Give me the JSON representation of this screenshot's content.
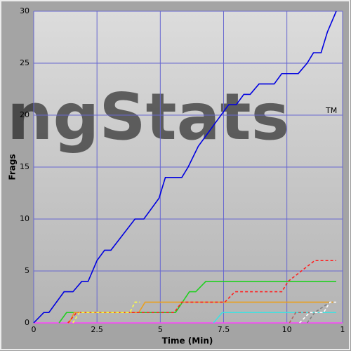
{
  "chart_data": {
    "type": "line",
    "watermark": "ngStats",
    "watermark_mark": "TM",
    "x_label": "Time (Min)",
    "y_label": "Frags",
    "xlim": [
      0,
      12.2
    ],
    "ylim": [
      0,
      30
    ],
    "xticks": [
      0,
      2.5,
      5,
      7.5,
      10,
      {
        "value": 12.2,
        "label": "1"
      }
    ],
    "yticks": [
      0,
      5,
      10,
      15,
      20,
      25,
      30
    ],
    "grid": true,
    "series": [
      {
        "color": "#ff40ff",
        "dashed": false,
        "x": [
          0,
          12.2
        ],
        "values": [
          0,
          0
        ]
      },
      {
        "color": "#0000e0",
        "dashed": false,
        "x": [
          0,
          0.4,
          0.6,
          0.9,
          1.2,
          1.55,
          1.9,
          2.15,
          2.5,
          2.8,
          3.05,
          4.0,
          4.35,
          4.95,
          5.2,
          5.85,
          6.1,
          6.5,
          7.1,
          7.7,
          8.0,
          8.3,
          8.55,
          8.9,
          9.5,
          9.8,
          10.45,
          10.8,
          11.05,
          11.35,
          11.6,
          11.95
        ],
        "values": [
          0,
          1,
          1,
          2,
          3,
          3,
          4,
          4,
          6,
          7,
          7,
          10,
          10,
          12,
          14,
          14,
          15,
          17,
          19,
          21,
          21,
          22,
          22,
          23,
          23,
          24,
          24,
          25,
          26,
          26,
          28,
          30
        ]
      },
      {
        "color": "#20d020",
        "dashed": false,
        "x": [
          1.0,
          1.3,
          5.6,
          6.15,
          6.4,
          6.8,
          11.95
        ],
        "values": [
          0,
          1,
          1,
          3,
          3,
          4,
          4
        ]
      },
      {
        "color": "#e8a020",
        "dashed": false,
        "x": [
          1.4,
          1.6,
          4.15,
          4.4,
          11.95
        ],
        "values": [
          0,
          1,
          1,
          2,
          2
        ]
      },
      {
        "color": "#ff2020",
        "dashed": true,
        "x": [
          1.35,
          1.7,
          5.55,
          5.85,
          7.55,
          7.95,
          9.8,
          10.05,
          11.1,
          11.95
        ],
        "values": [
          0,
          1,
          1,
          2,
          2,
          3,
          3,
          4,
          6,
          6
        ]
      },
      {
        "color": "#ffff40",
        "dashed": true,
        "x": [
          1.55,
          1.8,
          3.8,
          4.0,
          4.2
        ],
        "values": [
          0,
          1,
          1,
          2,
          2
        ]
      },
      {
        "color": "#40e0e0",
        "dashed": false,
        "x": [
          7.1,
          7.45,
          11.95
        ],
        "values": [
          0,
          1,
          1
        ]
      },
      {
        "color": "#b06060",
        "dashed": true,
        "x": [
          10.1,
          10.35,
          10.9
        ],
        "values": [
          0,
          1,
          1
        ]
      },
      {
        "color": "#808080",
        "dashed": true,
        "x": [
          10.8,
          11.1,
          11.7,
          11.95
        ],
        "values": [
          0,
          1,
          2,
          2
        ]
      },
      {
        "color": "#ffffff",
        "dashed": true,
        "x": [
          10.5,
          10.9,
          11.45,
          11.7,
          11.95
        ],
        "values": [
          0,
          1,
          1,
          2,
          2
        ]
      }
    ]
  }
}
